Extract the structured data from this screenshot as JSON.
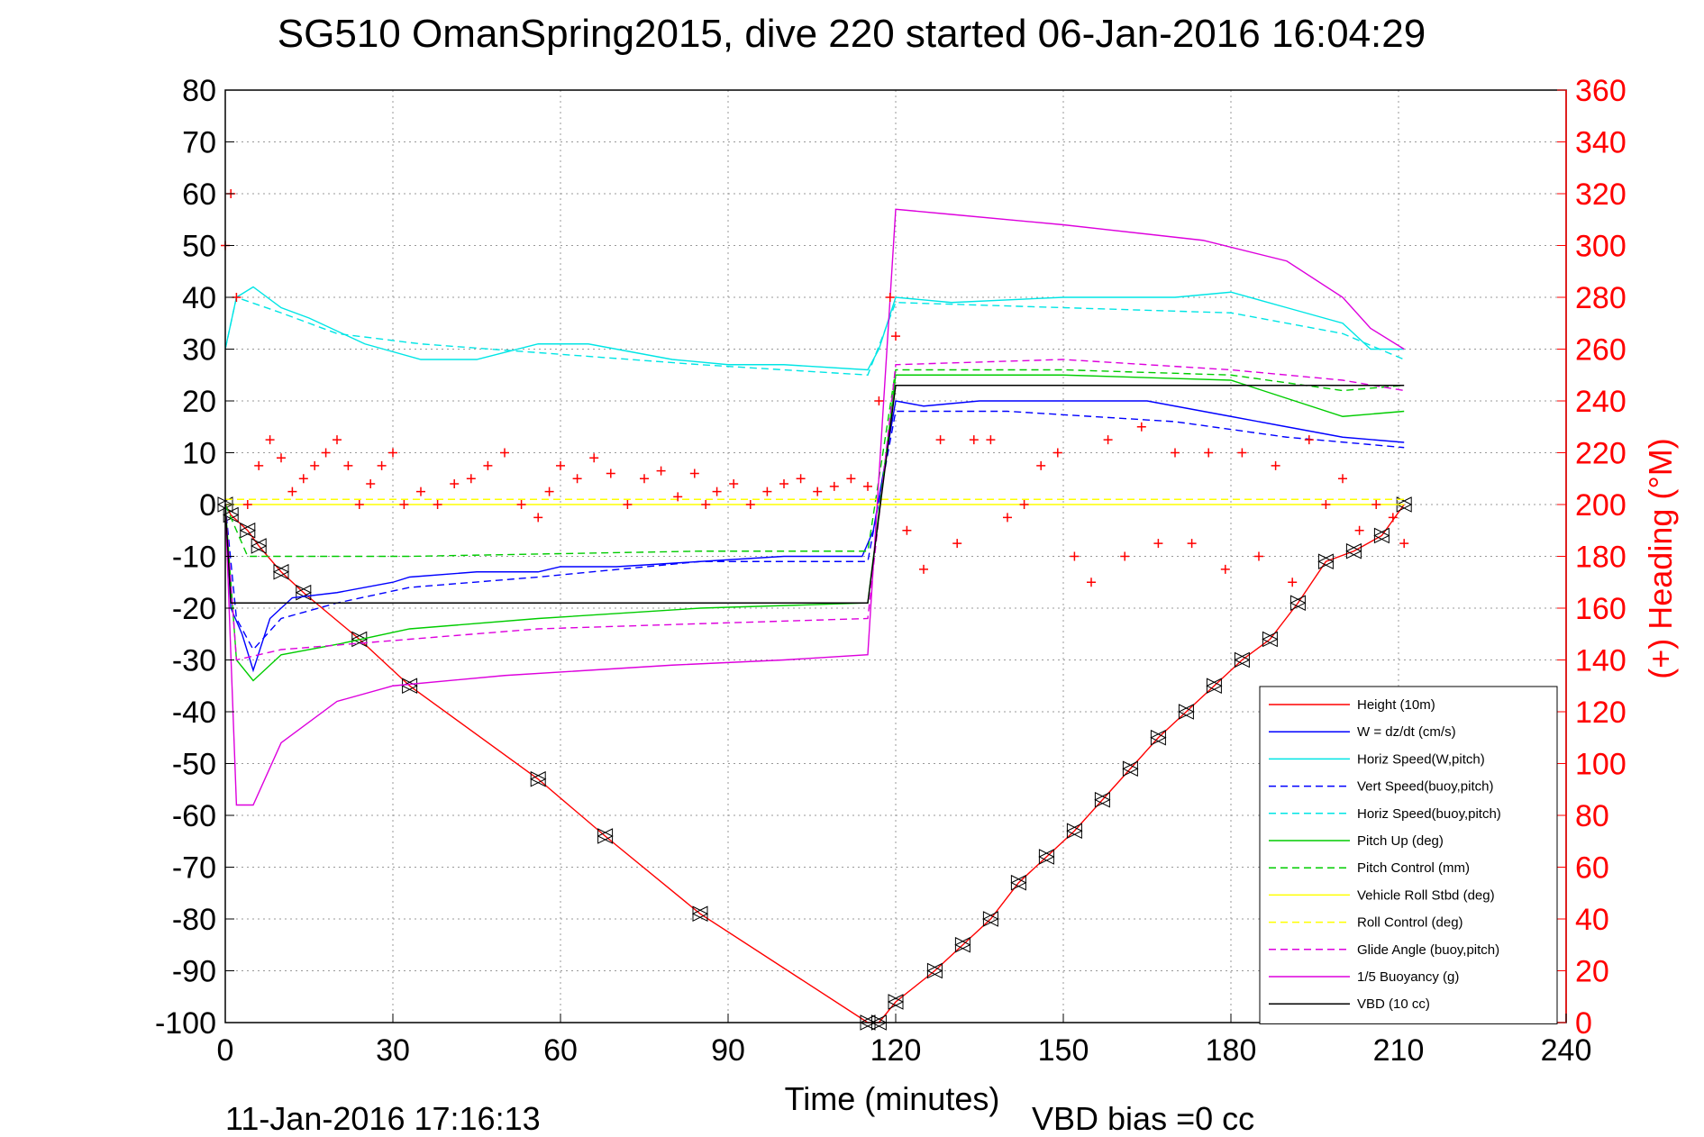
{
  "chart_data": {
    "type": "line",
    "title": "SG510 OmanSpring2015, dive 220 started 06-Jan-2016 16:04:29",
    "xlabel": "Time (minutes)",
    "ylabel_right": "(+) Heading (°M)",
    "footer_left": "11-Jan-2016 17:16:13",
    "footer_right": "VBD bias =0 cc",
    "xlim": [
      0,
      240
    ],
    "ylim": [
      -100,
      80
    ],
    "ylim_right": [
      0,
      360
    ],
    "x_ticks": [
      0,
      30,
      60,
      90,
      120,
      150,
      180,
      210,
      240
    ],
    "y_ticks": [
      -100,
      -90,
      -80,
      -70,
      -60,
      -50,
      -40,
      -30,
      -20,
      -10,
      0,
      10,
      20,
      30,
      40,
      50,
      60,
      70,
      80
    ],
    "y_ticks_right": [
      0,
      20,
      40,
      60,
      80,
      100,
      120,
      140,
      160,
      180,
      200,
      220,
      240,
      260,
      280,
      300,
      320,
      340,
      360
    ],
    "grid": true,
    "legend_position": "bottom-right",
    "series": [
      {
        "name": "Height (10m)",
        "color": "#ff0000",
        "style": "solid",
        "markers": true,
        "x": [
          0,
          1,
          4,
          6,
          10,
          14,
          24,
          33,
          56,
          68,
          85,
          115,
          117,
          120,
          127,
          132,
          137,
          142,
          147,
          152,
          157,
          162,
          167,
          172,
          177,
          182,
          187,
          192,
          197,
          202,
          207,
          211
        ],
        "y": [
          0,
          -2,
          -5,
          -8,
          -13,
          -17,
          -26,
          -35,
          -53,
          -64,
          -79,
          -100,
          -100,
          -96,
          -90,
          -85,
          -80,
          -73,
          -68,
          -63,
          -57,
          -51,
          -45,
          -40,
          -35,
          -30,
          -26,
          -19,
          -11,
          -9,
          -6,
          0
        ]
      },
      {
        "name": "W = dz/dt (cm/s)",
        "color": "#0000ff",
        "style": "solid",
        "x": [
          0,
          1,
          3,
          5,
          8,
          12,
          20,
          30,
          33,
          45,
          56,
          60,
          70,
          85,
          100,
          114,
          116,
          120,
          125,
          135,
          150,
          165,
          180,
          190,
          200,
          211
        ],
        "y": [
          0,
          -20,
          -25,
          -32,
          -22,
          -18,
          -17,
          -15,
          -14,
          -13,
          -13,
          -12,
          -12,
          -11,
          -10,
          -10,
          -5,
          20,
          19,
          20,
          20,
          20,
          17,
          15,
          13,
          12
        ]
      },
      {
        "name": "Horiz Speed(W,pitch)",
        "color": "#00e5e5",
        "style": "solid",
        "x": [
          0,
          2,
          5,
          10,
          15,
          25,
          35,
          45,
          56,
          65,
          80,
          90,
          100,
          115,
          117,
          120,
          130,
          150,
          170,
          180,
          190,
          200,
          205,
          211
        ],
        "y": [
          30,
          40,
          42,
          38,
          36,
          31,
          28,
          28,
          31,
          31,
          28,
          27,
          27,
          26,
          30,
          40,
          39,
          40,
          40,
          41,
          38,
          35,
          30,
          30
        ]
      },
      {
        "name": "Vert Speed(buoy,pitch)",
        "color": "#0000ff",
        "style": "dashed",
        "x": [
          0,
          2,
          5,
          10,
          20,
          33,
          56,
          85,
          115,
          120,
          140,
          170,
          190,
          211
        ],
        "y": [
          0,
          -22,
          -28,
          -22,
          -19,
          -16,
          -14,
          -11,
          -11,
          18,
          18,
          16,
          13,
          11
        ]
      },
      {
        "name": "Horiz Speed(buoy,pitch)",
        "color": "#00e5e5",
        "style": "dashed",
        "x": [
          0,
          2,
          10,
          20,
          35,
          60,
          85,
          115,
          120,
          150,
          180,
          200,
          211
        ],
        "y": [
          30,
          40,
          37,
          33,
          31,
          29,
          27,
          25,
          39,
          38,
          37,
          33,
          28
        ]
      },
      {
        "name": "Pitch Up (deg)",
        "color": "#00cc00",
        "style": "solid",
        "x": [
          0,
          2,
          5,
          10,
          20,
          33,
          56,
          85,
          115,
          120,
          150,
          180,
          200,
          211
        ],
        "y": [
          0,
          -30,
          -34,
          -29,
          -27,
          -24,
          -22,
          -20,
          -19,
          25,
          25,
          24,
          17,
          18
        ]
      },
      {
        "name": "Pitch Control (mm)",
        "color": "#00cc00",
        "style": "dashed",
        "x": [
          0,
          4,
          33,
          85,
          115,
          120,
          150,
          180,
          200,
          211
        ],
        "y": [
          0,
          -10,
          -10,
          -9,
          -9,
          26,
          26,
          25,
          22,
          23
        ]
      },
      {
        "name": "Vehicle Roll Stbd (deg)",
        "color": "#ffff00",
        "style": "solid",
        "x": [
          0,
          5,
          10,
          30,
          60,
          90,
          115,
          120,
          150,
          180,
          211
        ],
        "y": [
          0,
          0,
          0,
          0,
          0,
          0,
          0,
          0,
          0,
          0,
          0
        ]
      },
      {
        "name": "Roll Control (deg)",
        "color": "#ffff00",
        "style": "dashed",
        "x": [
          0,
          115,
          120,
          211
        ],
        "y": [
          1,
          1,
          1,
          1
        ]
      },
      {
        "name": "Glide Angle (buoy,pitch)",
        "color": "#dd00dd",
        "style": "dashed",
        "x": [
          0,
          2,
          10,
          33,
          56,
          85,
          115,
          120,
          150,
          180,
          200,
          211
        ],
        "y": [
          0,
          -30,
          -28,
          -26,
          -24,
          -23,
          -22,
          27,
          28,
          26,
          24,
          22
        ]
      },
      {
        "name": "1/5 Buoyancy (g)",
        "color": "#dd00dd",
        "style": "solid",
        "x": [
          0,
          2,
          5,
          10,
          20,
          30,
          50,
          80,
          100,
          115,
          120,
          130,
          150,
          175,
          190,
          200,
          205,
          211
        ],
        "y": [
          0,
          -58,
          -58,
          -46,
          -38,
          -35,
          -33,
          -31,
          -30,
          -29,
          57,
          56,
          54,
          51,
          47,
          40,
          34,
          30
        ]
      },
      {
        "name": "VBD (10 cc)",
        "color": "#000000",
        "style": "solid",
        "x": [
          0,
          1,
          115,
          120,
          211
        ],
        "y": [
          0,
          -19,
          -19,
          23,
          23
        ]
      }
    ],
    "heading_series": {
      "name": "(+) Heading (°M)",
      "color": "#ff0000",
      "marker": "+",
      "x": [
        0,
        1,
        2,
        4,
        6,
        8,
        10,
        12,
        14,
        16,
        18,
        20,
        22,
        24,
        26,
        28,
        30,
        32,
        35,
        38,
        41,
        44,
        47,
        50,
        53,
        56,
        58,
        60,
        63,
        66,
        69,
        72,
        75,
        78,
        81,
        84,
        86,
        88,
        91,
        94,
        97,
        100,
        103,
        106,
        109,
        112,
        115,
        117,
        119,
        120,
        122,
        125,
        128,
        131,
        134,
        137,
        140,
        143,
        146,
        149,
        152,
        155,
        158,
        161,
        164,
        167,
        170,
        173,
        176,
        179,
        182,
        185,
        188,
        191,
        194,
        197,
        200,
        203,
        206,
        209,
        211
      ],
      "y": [
        300,
        320,
        280,
        200,
        215,
        225,
        218,
        205,
        210,
        215,
        220,
        225,
        215,
        200,
        208,
        215,
        220,
        200,
        205,
        200,
        208,
        210,
        215,
        220,
        200,
        195,
        205,
        215,
        210,
        218,
        212,
        200,
        210,
        213,
        203,
        212,
        200,
        205,
        208,
        200,
        205,
        208,
        210,
        205,
        207,
        210,
        207,
        240,
        280,
        265,
        190,
        175,
        225,
        185,
        225,
        225,
        195,
        200,
        215,
        220,
        180,
        170,
        225,
        180,
        230,
        185,
        220,
        185,
        220,
        175,
        220,
        180,
        215,
        170,
        225,
        200,
        210,
        190,
        200,
        195,
        185
      ]
    }
  }
}
